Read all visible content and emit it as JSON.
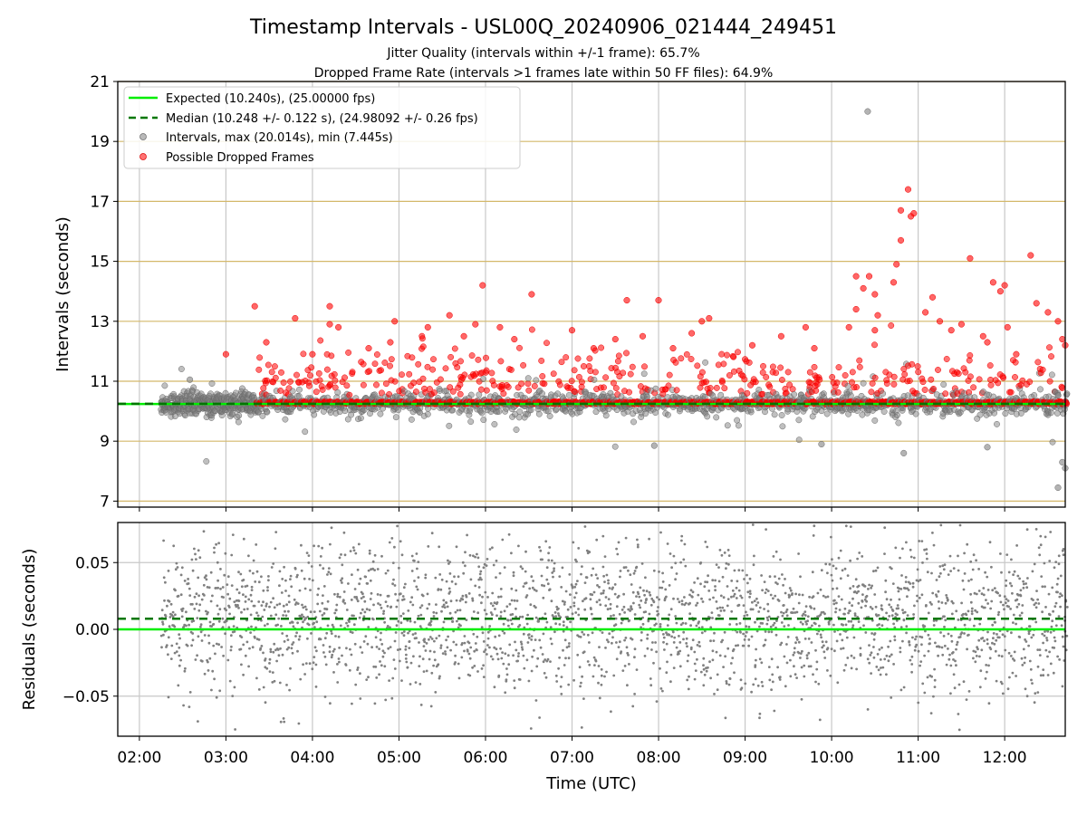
{
  "chart_data": {
    "type": "scatter",
    "title": "Timestamp Intervals - USL00Q_20240906_021444_249451",
    "subtitle_lines": [
      "Jitter Quality (intervals within +/-1 frame): 65.7%",
      "Dropped Frame Rate (intervals >1 frames late within 50 FF files): 64.9%"
    ],
    "xlabel": "Time (UTC)",
    "x_ticks": [
      "02:00",
      "03:00",
      "04:00",
      "05:00",
      "06:00",
      "07:00",
      "08:00",
      "09:00",
      "10:00",
      "11:00",
      "12:00"
    ],
    "x_range_hours": [
      1.75,
      12.7
    ],
    "grid": true,
    "legend_position": "top-left",
    "colors": {
      "expected": "#00ee00",
      "median": "#007700",
      "intervals": "#808080",
      "dropped": "#ff0000",
      "gridline_y": "#d4b86a",
      "gridline_x": "#c8c8c8"
    },
    "panels": [
      {
        "name": "intervals",
        "ylabel": "Intervals (seconds)",
        "ylim": [
          6.8,
          21
        ],
        "y_ticks": [
          "7",
          "9",
          "11",
          "13",
          "15",
          "17",
          "19",
          "21"
        ],
        "lines": [
          {
            "name": "expected",
            "value": 10.24,
            "style": "solid"
          },
          {
            "name": "median",
            "value": 10.248,
            "style": "dashed"
          }
        ],
        "legend": [
          "Expected (10.240s), (25.00000 fps)",
          "Median (10.248 +/- 0.122 s), (24.98092 +/- 0.26 fps)",
          "Intervals, max (20.014s), min (7.445s)",
          "Possible Dropped Frames"
        ],
        "dropped_outliers": [
          {
            "x": "03:00",
            "y": 11.9
          },
          {
            "x": "03:20",
            "y": 13.5
          },
          {
            "x": "03:28",
            "y": 12.3
          },
          {
            "x": "03:48",
            "y": 13.1
          },
          {
            "x": "04:00",
            "y": 11.9
          },
          {
            "x": "04:12",
            "y": 12.9
          },
          {
            "x": "04:12",
            "y": 13.5
          },
          {
            "x": "04:18",
            "y": 12.8
          },
          {
            "x": "04:39",
            "y": 12.1
          },
          {
            "x": "04:54",
            "y": 12.3
          },
          {
            "x": "04:57",
            "y": 13.0
          },
          {
            "x": "05:20",
            "y": 12.8
          },
          {
            "x": "05:35",
            "y": 13.2
          },
          {
            "x": "05:45",
            "y": 12.5
          },
          {
            "x": "05:53",
            "y": 12.9
          },
          {
            "x": "05:58",
            "y": 14.2
          },
          {
            "x": "06:10",
            "y": 12.8
          },
          {
            "x": "06:20",
            "y": 12.4
          },
          {
            "x": "06:32",
            "y": 13.9
          },
          {
            "x": "07:00",
            "y": 12.7
          },
          {
            "x": "07:15",
            "y": 12.1
          },
          {
            "x": "07:30",
            "y": 12.4
          },
          {
            "x": "07:38",
            "y": 13.7
          },
          {
            "x": "07:49",
            "y": 12.5
          },
          {
            "x": "08:00",
            "y": 13.7
          },
          {
            "x": "08:10",
            "y": 12.1
          },
          {
            "x": "08:23",
            "y": 12.6
          },
          {
            "x": "08:30",
            "y": 13.0
          },
          {
            "x": "08:35",
            "y": 13.1
          },
          {
            "x": "09:05",
            "y": 12.2
          },
          {
            "x": "09:25",
            "y": 12.5
          },
          {
            "x": "09:42",
            "y": 12.8
          },
          {
            "x": "09:48",
            "y": 12.1
          },
          {
            "x": "10:12",
            "y": 12.8
          },
          {
            "x": "10:17",
            "y": 13.4
          },
          {
            "x": "10:17",
            "y": 14.5
          },
          {
            "x": "10:22",
            "y": 14.1
          },
          {
            "x": "10:26",
            "y": 14.5
          },
          {
            "x": "10:30",
            "y": 13.9
          },
          {
            "x": "10:30",
            "y": 12.7
          },
          {
            "x": "10:32",
            "y": 13.2
          },
          {
            "x": "10:43",
            "y": 14.3
          },
          {
            "x": "10:45",
            "y": 14.9
          },
          {
            "x": "10:48",
            "y": 15.7
          },
          {
            "x": "10:48",
            "y": 16.7
          },
          {
            "x": "10:53",
            "y": 17.4
          },
          {
            "x": "10:55",
            "y": 16.5
          },
          {
            "x": "10:57",
            "y": 16.6
          },
          {
            "x": "11:05",
            "y": 13.3
          },
          {
            "x": "11:10",
            "y": 13.8
          },
          {
            "x": "11:15",
            "y": 13.0
          },
          {
            "x": "11:23",
            "y": 12.7
          },
          {
            "x": "11:30",
            "y": 12.9
          },
          {
            "x": "11:36",
            "y": 15.1
          },
          {
            "x": "11:45",
            "y": 12.5
          },
          {
            "x": "11:48",
            "y": 12.3
          },
          {
            "x": "11:52",
            "y": 14.3
          },
          {
            "x": "11:57",
            "y": 14.0
          },
          {
            "x": "12:00",
            "y": 14.2
          },
          {
            "x": "12:02",
            "y": 12.8
          },
          {
            "x": "12:08",
            "y": 11.9
          },
          {
            "x": "12:18",
            "y": 15.2
          },
          {
            "x": "12:22",
            "y": 13.6
          },
          {
            "x": "12:30",
            "y": 13.3
          },
          {
            "x": "12:37",
            "y": 13.0
          },
          {
            "x": "12:40",
            "y": 12.4
          },
          {
            "x": "12:42",
            "y": 12.2
          }
        ],
        "interval_outliers": [
          {
            "x": "10:25",
            "y": 20.0
          },
          {
            "x": "12:37",
            "y": 7.45
          },
          {
            "x": "12:40",
            "y": 8.3
          },
          {
            "x": "12:42",
            "y": 8.1
          },
          {
            "x": "10:50",
            "y": 8.6
          },
          {
            "x": "11:48",
            "y": 8.8
          },
          {
            "x": "09:53",
            "y": 8.9
          },
          {
            "x": "07:57",
            "y": 8.85
          },
          {
            "x": "02:35",
            "y": 11.05
          }
        ]
      },
      {
        "name": "residuals",
        "ylabel": "Residuals (seconds)",
        "ylim": [
          -0.08,
          0.08
        ],
        "y_ticks": [
          "0.05",
          "0.00",
          "−0.05"
        ],
        "lines": [
          {
            "name": "expected",
            "value": 0.0,
            "style": "solid"
          },
          {
            "name": "median",
            "value": 0.008,
            "style": "dashed"
          }
        ]
      }
    ]
  }
}
